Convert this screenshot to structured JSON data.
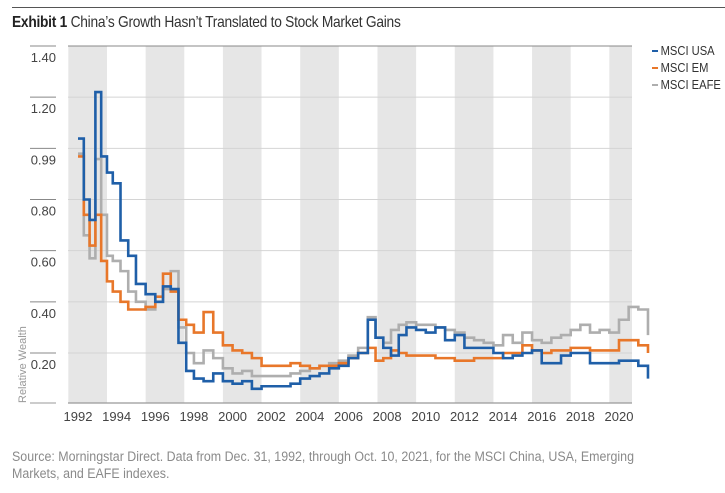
{
  "header": {
    "exhibit_label": "Exhibit 1",
    "title": "China’s Growth Hasn’t Translated to Stock Market Gains"
  },
  "legend": [
    {
      "name": "MSCI USA",
      "color": "#1f5fa8"
    },
    {
      "name": "MSCI EM",
      "color": "#e8772a"
    },
    {
      "name": "MSCI EAFE",
      "color": "#aeaeae"
    }
  ],
  "footer": {
    "source": "Source: Morningstar Direct. Data from Dec. 31, 1992, through Oct. 10, 2021, for the MSCI China, USA, Emerging Markets, and EAFE indexes."
  },
  "chart_data": {
    "type": "line",
    "title": "China’s Growth Hasn’t Translated to Stock Market Gains",
    "xlabel": "",
    "ylabel": "Relative Wealth",
    "xlim": [
      1991.5,
      2021.8
    ],
    "y_ticks": [
      1.4,
      1.2,
      0.99,
      0.8,
      0.6,
      0.4,
      0.2
    ],
    "y_tick_labels": [
      "1.40",
      "1.20",
      "0.99",
      "0.80",
      "0.60",
      "0.40",
      "0.20"
    ],
    "x_ticks": [
      1992,
      1994,
      1996,
      1998,
      2000,
      2002,
      2004,
      2006,
      2008,
      2010,
      2012,
      2014,
      2016,
      2018,
      2020
    ],
    "x_tick_labels": [
      "1992",
      "1994",
      "1996",
      "1998",
      "2000",
      "2002",
      "2004",
      "2006",
      "2008",
      "2010",
      "2012",
      "2014",
      "2016",
      "2018",
      "2020"
    ],
    "grid": true,
    "alternating_year_bands": true,
    "legend_position": "top-right",
    "x": [
      1992.0,
      1992.3,
      1992.6,
      1992.9,
      1993.2,
      1993.5,
      1993.8,
      1994.2,
      1994.6,
      1995.0,
      1995.5,
      1996.0,
      1996.4,
      1996.8,
      1997.2,
      1997.6,
      1998.0,
      1998.5,
      1999.0,
      1999.5,
      2000.0,
      2000.5,
      2001.0,
      2001.5,
      2002.0,
      2002.5,
      2003.0,
      2003.5,
      2004.0,
      2004.5,
      2005.0,
      2005.5,
      2006.0,
      2006.5,
      2007.0,
      2007.4,
      2007.8,
      2008.2,
      2008.6,
      2009.0,
      2009.5,
      2010.0,
      2010.5,
      2011.0,
      2011.5,
      2012.0,
      2012.5,
      2013.0,
      2013.5,
      2014.0,
      2014.5,
      2015.0,
      2015.5,
      2016.0,
      2016.5,
      2017.0,
      2017.5,
      2018.0,
      2018.5,
      2019.0,
      2019.5,
      2020.0,
      2020.5,
      2021.0,
      2021.5
    ],
    "series": [
      {
        "name": "MSCI USA",
        "color": "#1f5fa8",
        "values": [
          1.03,
          0.8,
          0.72,
          1.22,
          0.96,
          0.9,
          0.86,
          0.64,
          0.58,
          0.47,
          0.43,
          0.4,
          0.46,
          0.45,
          0.24,
          0.13,
          0.1,
          0.09,
          0.12,
          0.09,
          0.08,
          0.09,
          0.06,
          0.07,
          0.07,
          0.07,
          0.08,
          0.1,
          0.11,
          0.12,
          0.14,
          0.15,
          0.18,
          0.2,
          0.33,
          0.26,
          0.22,
          0.19,
          0.27,
          0.3,
          0.29,
          0.28,
          0.3,
          0.25,
          0.27,
          0.22,
          0.22,
          0.22,
          0.2,
          0.18,
          0.19,
          0.2,
          0.21,
          0.16,
          0.16,
          0.19,
          0.2,
          0.2,
          0.16,
          0.16,
          0.16,
          0.17,
          0.17,
          0.15,
          0.1
        ]
      },
      {
        "name": "MSCI EM",
        "color": "#e8772a",
        "values": [
          0.96,
          0.74,
          0.62,
          0.74,
          0.56,
          0.48,
          0.44,
          0.4,
          0.37,
          0.37,
          0.38,
          0.42,
          0.51,
          0.44,
          0.33,
          0.31,
          0.28,
          0.36,
          0.28,
          0.23,
          0.21,
          0.2,
          0.18,
          0.15,
          0.15,
          0.15,
          0.16,
          0.15,
          0.14,
          0.15,
          0.15,
          0.16,
          0.18,
          0.2,
          0.22,
          0.17,
          0.18,
          0.21,
          0.2,
          0.19,
          0.19,
          0.19,
          0.18,
          0.18,
          0.17,
          0.17,
          0.18,
          0.18,
          0.18,
          0.2,
          0.2,
          0.23,
          0.21,
          0.2,
          0.21,
          0.21,
          0.22,
          0.22,
          0.21,
          0.21,
          0.21,
          0.25,
          0.25,
          0.23,
          0.2
        ]
      },
      {
        "name": "MSCI EAFE",
        "color": "#aeaeae",
        "values": [
          0.97,
          0.66,
          0.57,
          0.95,
          0.74,
          0.58,
          0.56,
          0.52,
          0.44,
          0.4,
          0.37,
          0.4,
          0.45,
          0.52,
          0.3,
          0.2,
          0.16,
          0.21,
          0.18,
          0.14,
          0.12,
          0.13,
          0.11,
          0.11,
          0.11,
          0.11,
          0.12,
          0.13,
          0.14,
          0.15,
          0.16,
          0.17,
          0.19,
          0.22,
          0.34,
          0.26,
          0.24,
          0.29,
          0.31,
          0.32,
          0.31,
          0.31,
          0.3,
          0.29,
          0.28,
          0.26,
          0.25,
          0.24,
          0.23,
          0.27,
          0.24,
          0.28,
          0.25,
          0.24,
          0.26,
          0.27,
          0.29,
          0.31,
          0.28,
          0.29,
          0.28,
          0.33,
          0.38,
          0.37,
          0.27
        ]
      }
    ]
  }
}
